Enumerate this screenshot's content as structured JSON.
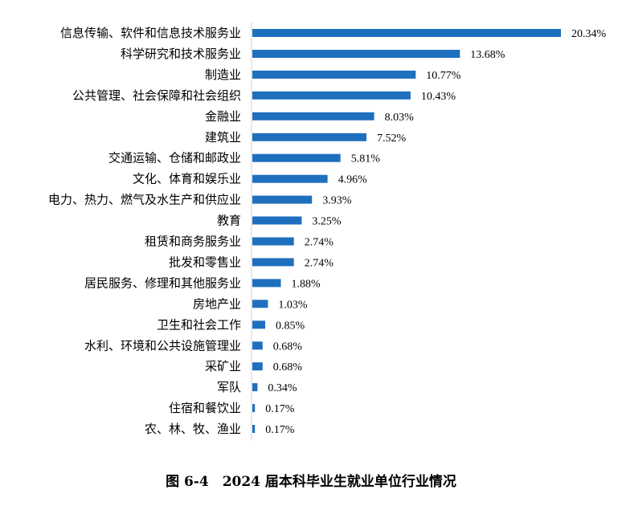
{
  "chart_data": {
    "type": "bar",
    "orientation": "horizontal",
    "categories": [
      "信息传输、软件和信息技术服务业",
      "科学研究和技术服务业",
      "制造业",
      "公共管理、社会保障和社会组织",
      "金融业",
      "建筑业",
      "交通运输、仓储和邮政业",
      "文化、体育和娱乐业",
      "电力、热力、燃气及水生产和供应业",
      "教育",
      "租赁和商务服务业",
      "批发和零售业",
      "居民服务、修理和其他服务业",
      "房地产业",
      "卫生和社会工作",
      "水利、环境和公共设施管理业",
      "采矿业",
      "军队",
      "住宿和餐饮业",
      "农、林、牧、渔业"
    ],
    "values": [
      20.34,
      13.68,
      10.77,
      10.43,
      8.03,
      7.52,
      5.81,
      4.96,
      3.93,
      3.25,
      2.74,
      2.74,
      1.88,
      1.03,
      0.85,
      0.68,
      0.68,
      0.34,
      0.17,
      0.17
    ],
    "value_labels": [
      "20.34%",
      "13.68%",
      "10.77%",
      "10.43%",
      "8.03%",
      "7.52%",
      "5.81%",
      "4.96%",
      "3.93%",
      "3.25%",
      "2.74%",
      "2.74%",
      "1.88%",
      "1.03%",
      "0.85%",
      "0.68%",
      "0.68%",
      "0.34%",
      "0.17%",
      "0.17%"
    ],
    "unit": "%",
    "xlim": [
      0,
      20.34
    ],
    "grid": false,
    "bar_color": "#1f6fbf",
    "axis_color": "#d0d0d0"
  },
  "caption": "图 6-4　2024 届本科毕业生就业单位行业情况"
}
